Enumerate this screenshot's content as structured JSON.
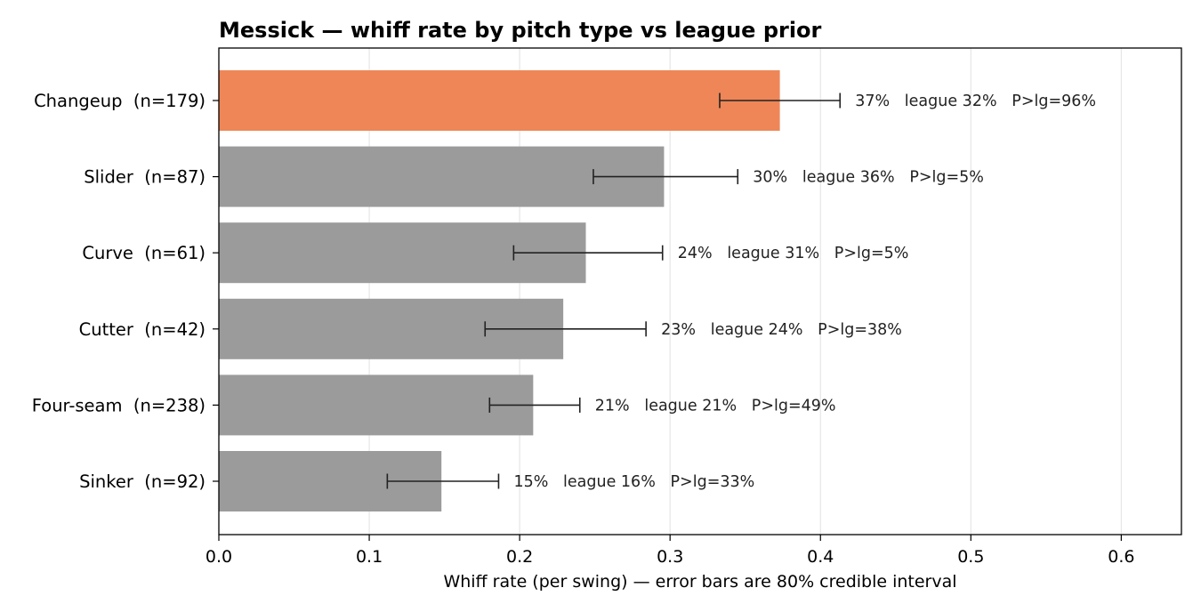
{
  "chart_data": {
    "type": "bar",
    "orientation": "horizontal",
    "title": "Messick — whiff rate by pitch type vs league prior",
    "xlabel": "Whiff rate (per swing) — error bars are 80% credible interval",
    "ylabel": "",
    "xlim": [
      0.0,
      0.64
    ],
    "xticks": [
      "0.0",
      "0.1",
      "0.2",
      "0.3",
      "0.4",
      "0.5",
      "0.6"
    ],
    "grid": "vertical",
    "highlight_color": "#ee8657",
    "bar_color": "#9b9b9b",
    "categories": [
      "Changeup  (n=179)",
      "Slider  (n=87)",
      "Curve  (n=61)",
      "Cutter  (n=42)",
      "Four-seam  (n=238)",
      "Sinker  (n=92)"
    ],
    "bars": [
      {
        "label": "Changeup  (n=179)",
        "value": 0.373,
        "ci_low": 0.333,
        "ci_high": 0.413,
        "highlight": true,
        "annotation": "37%   league 32%   P>lg=96%"
      },
      {
        "label": "Slider  (n=87)",
        "value": 0.296,
        "ci_low": 0.249,
        "ci_high": 0.345,
        "highlight": false,
        "annotation": "30%   league 36%   P>lg=5%"
      },
      {
        "label": "Curve  (n=61)",
        "value": 0.244,
        "ci_low": 0.196,
        "ci_high": 0.295,
        "highlight": false,
        "annotation": "24%   league 31%   P>lg=5%"
      },
      {
        "label": "Cutter  (n=42)",
        "value": 0.229,
        "ci_low": 0.177,
        "ci_high": 0.284,
        "highlight": false,
        "annotation": "23%   league 24%   P>lg=38%"
      },
      {
        "label": "Four-seam  (n=238)",
        "value": 0.209,
        "ci_low": 0.18,
        "ci_high": 0.24,
        "highlight": false,
        "annotation": "21%   league 21%   P>lg=49%"
      },
      {
        "label": "Sinker  (n=92)",
        "value": 0.148,
        "ci_low": 0.112,
        "ci_high": 0.186,
        "highlight": false,
        "annotation": "15%   league 16%   P>lg=33%"
      }
    ]
  }
}
